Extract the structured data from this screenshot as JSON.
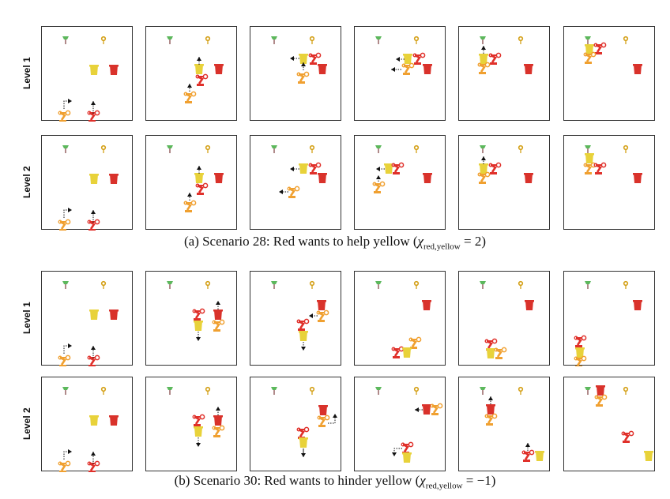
{
  "figure": {
    "sections": [
      {
        "caption": {
          "prefix": "(a) Scenario 28: Red wants to help yellow (",
          "symbol": "χ",
          "subscript": "red,yellow",
          "relation": " = 2)"
        },
        "rows": [
          {
            "label": "Level 1"
          },
          {
            "label": "Level 2"
          }
        ]
      },
      {
        "caption": {
          "prefix": "(b) Scenario 30: Red wants to hinder yellow (",
          "symbol": "χ",
          "subscript": "red,yellow",
          "relation": " = −1)"
        },
        "rows": [
          {
            "label": "Level 1"
          },
          {
            "label": "Level 2"
          }
        ]
      }
    ],
    "colors": {
      "tree": "#5cb85c",
      "key": "#d4a017",
      "yellow_bin": "#e8d23a",
      "red_bin": "#d9322b",
      "orange_robot": "#f0a030",
      "red_robot": "#e0302a",
      "arrow": "#111111"
    }
  }
}
